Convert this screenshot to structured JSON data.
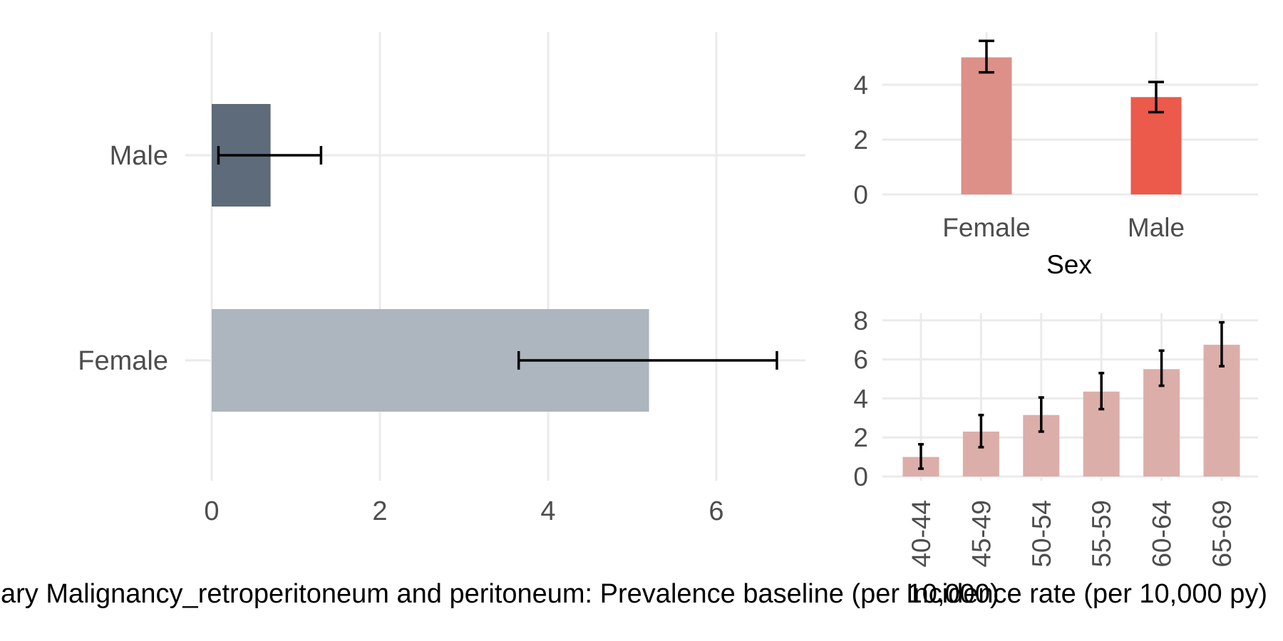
{
  "chart_data": [
    {
      "type": "bar",
      "orientation": "horizontal",
      "categories": [
        "Male",
        "Female"
      ],
      "values": [
        0.7,
        5.2
      ],
      "error_low": [
        0.08,
        3.65
      ],
      "error_high": [
        1.3,
        6.72
      ],
      "colors": [
        "#5d6b7b",
        "#adb5be"
      ],
      "xlabel": "ary Malignancy_retroperitoneum and peritoneum: Prevalence baseline (per 10,000)",
      "xticks": [
        "0",
        "2",
        "4",
        "6"
      ],
      "xlim": [
        0,
        7.05
      ],
      "grid": true
    },
    {
      "type": "bar",
      "categories": [
        "Female",
        "Male"
      ],
      "values": [
        5.0,
        3.55
      ],
      "error_low": [
        4.45,
        3.0
      ],
      "error_high": [
        5.6,
        4.1
      ],
      "colors": [
        "#dd9088",
        "#eb5a4b"
      ],
      "xlabel": "Sex",
      "yticks": [
        "0",
        "2",
        "4"
      ],
      "ylim": [
        0,
        5.9
      ],
      "grid": true
    },
    {
      "type": "bar",
      "categories": [
        "40-44",
        "45-49",
        "50-54",
        "55-59",
        "60-64",
        "65-69"
      ],
      "values": [
        1.0,
        2.3,
        3.15,
        4.35,
        5.5,
        6.75
      ],
      "error_low": [
        0.4,
        1.5,
        2.3,
        3.45,
        4.65,
        5.65
      ],
      "error_high": [
        1.65,
        3.15,
        4.05,
        5.3,
        6.45,
        7.9
      ],
      "color": "#dcaea9",
      "xlabel": "Incidence rate (per 10,000 py)",
      "yticks": [
        "0",
        "2",
        "4",
        "6",
        "8"
      ],
      "ylim": [
        0,
        8.5
      ],
      "grid": true
    }
  ]
}
